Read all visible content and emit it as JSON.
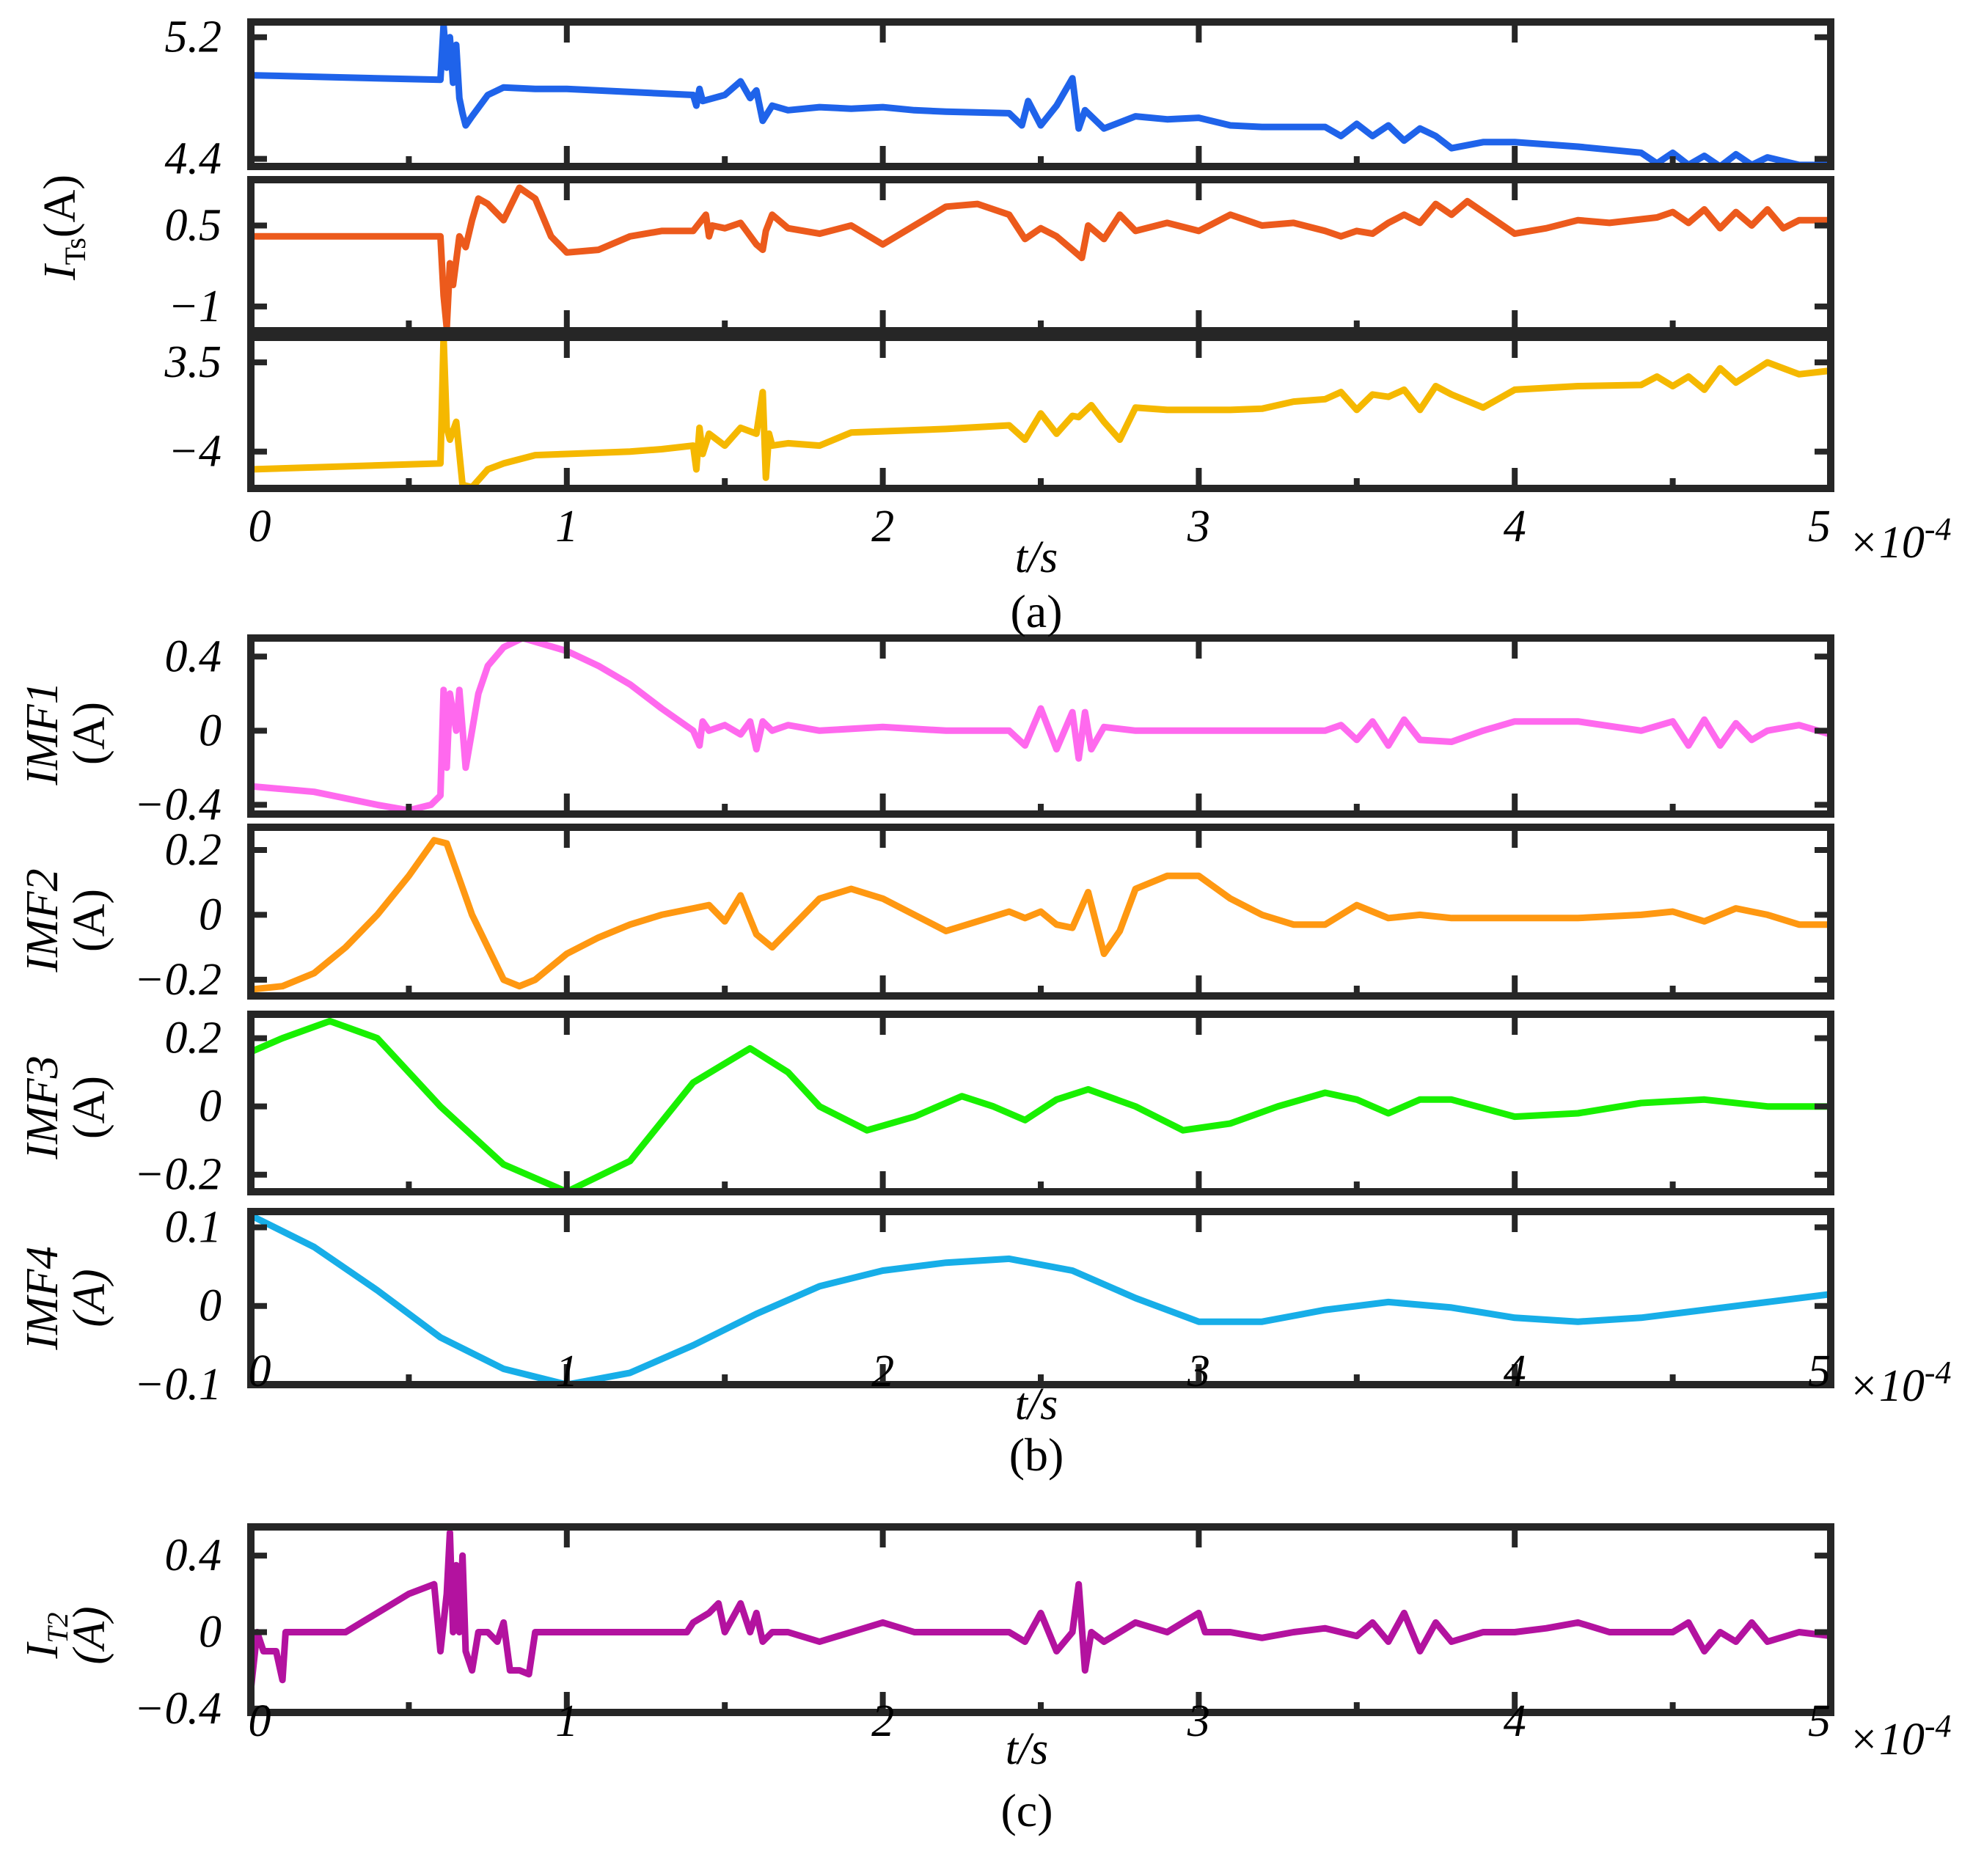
{
  "figure": {
    "captions": [
      "(a)",
      "(b)",
      "(c)"
    ],
    "x_exponent_label": "×10",
    "x_exponent_power": "-4"
  },
  "chart_data": [
    {
      "id": "a1",
      "panel": "(a)",
      "type": "line",
      "color": "#1f63ea",
      "xlabel": "t/s",
      "ylabel": "I_Ts(A)",
      "xlim": [
        0,
        5
      ],
      "ylim": [
        4.35,
        5.3
      ],
      "xticks": [
        0,
        1,
        2,
        3,
        4,
        5
      ],
      "yticks": [
        4.4,
        5.2
      ],
      "ytick_labels": [
        "4.4",
        "5.2"
      ],
      "x": [
        0,
        0.6,
        0.61,
        0.62,
        0.63,
        0.64,
        0.65,
        0.66,
        0.67,
        0.68,
        0.7,
        0.75,
        0.8,
        0.9,
        1.0,
        1.2,
        1.4,
        1.41,
        1.42,
        1.43,
        1.5,
        1.55,
        1.58,
        1.6,
        1.62,
        1.65,
        1.7,
        1.8,
        1.9,
        2.0,
        2.1,
        2.2,
        2.4,
        2.44,
        2.46,
        2.5,
        2.55,
        2.6,
        2.62,
        2.64,
        2.7,
        2.8,
        2.9,
        3.0,
        3.1,
        3.2,
        3.4,
        3.45,
        3.5,
        3.55,
        3.6,
        3.65,
        3.7,
        3.75,
        3.8,
        3.9,
        4.0,
        4.2,
        4.4,
        4.45,
        4.5,
        4.55,
        4.6,
        4.65,
        4.7,
        4.75,
        4.8,
        4.9,
        5.0
      ],
      "y": [
        4.95,
        4.92,
        5.28,
        5.0,
        5.2,
        4.9,
        5.15,
        4.8,
        4.7,
        4.62,
        4.68,
        4.82,
        4.87,
        4.86,
        4.86,
        4.84,
        4.82,
        4.75,
        4.86,
        4.78,
        4.82,
        4.91,
        4.8,
        4.85,
        4.65,
        4.75,
        4.72,
        4.74,
        4.73,
        4.74,
        4.72,
        4.71,
        4.7,
        4.62,
        4.78,
        4.62,
        4.75,
        4.93,
        4.6,
        4.72,
        4.6,
        4.68,
        4.66,
        4.67,
        4.62,
        4.61,
        4.61,
        4.55,
        4.63,
        4.55,
        4.62,
        4.52,
        4.6,
        4.55,
        4.47,
        4.51,
        4.51,
        4.48,
        4.44,
        4.37,
        4.44,
        4.36,
        4.42,
        4.35,
        4.43,
        4.36,
        4.41,
        4.36,
        4.36
      ]
    },
    {
      "id": "a2",
      "panel": "(a)",
      "type": "line",
      "color": "#ec5a1c",
      "xlim": [
        0,
        5
      ],
      "ylim": [
        -1.45,
        1.35
      ],
      "yticks": [
        -1,
        0.5
      ],
      "ytick_labels": [
        "−1",
        "0.5"
      ],
      "x": [
        0,
        0.6,
        0.61,
        0.62,
        0.63,
        0.64,
        0.66,
        0.68,
        0.7,
        0.72,
        0.75,
        0.8,
        0.85,
        0.9,
        0.95,
        1.0,
        1.1,
        1.2,
        1.3,
        1.4,
        1.44,
        1.45,
        1.46,
        1.5,
        1.55,
        1.6,
        1.62,
        1.63,
        1.65,
        1.7,
        1.8,
        1.9,
        2.0,
        2.1,
        2.2,
        2.3,
        2.4,
        2.45,
        2.5,
        2.55,
        2.6,
        2.63,
        2.65,
        2.7,
        2.75,
        2.8,
        2.9,
        3.0,
        3.1,
        3.2,
        3.3,
        3.4,
        3.45,
        3.5,
        3.55,
        3.6,
        3.65,
        3.7,
        3.75,
        3.8,
        3.85,
        3.9,
        4.0,
        4.1,
        4.2,
        4.3,
        4.45,
        4.5,
        4.55,
        4.6,
        4.65,
        4.7,
        4.75,
        4.8,
        4.85,
        4.9,
        5.0
      ],
      "y": [
        0.3,
        0.3,
        -0.8,
        -1.4,
        -0.2,
        -0.6,
        0.3,
        0.1,
        0.6,
        1.0,
        0.9,
        0.6,
        1.2,
        1.0,
        0.3,
        0.0,
        0.05,
        0.3,
        0.4,
        0.4,
        0.7,
        0.3,
        0.5,
        0.45,
        0.55,
        0.15,
        0.05,
        0.4,
        0.7,
        0.45,
        0.35,
        0.5,
        0.15,
        0.5,
        0.85,
        0.9,
        0.7,
        0.25,
        0.45,
        0.3,
        0.05,
        -0.1,
        0.5,
        0.25,
        0.7,
        0.4,
        0.55,
        0.4,
        0.7,
        0.5,
        0.55,
        0.4,
        0.3,
        0.4,
        0.35,
        0.55,
        0.7,
        0.55,
        0.9,
        0.7,
        0.95,
        0.75,
        0.35,
        0.45,
        0.6,
        0.55,
        0.65,
        0.75,
        0.55,
        0.8,
        0.45,
        0.75,
        0.5,
        0.8,
        0.45,
        0.6,
        0.6
      ]
    },
    {
      "id": "a3",
      "panel": "(a)",
      "type": "line",
      "color": "#f5b800",
      "xlim": [
        0,
        5
      ],
      "ylim": [
        -7.1,
        5.6
      ],
      "yticks": [
        -4,
        3.5
      ],
      "ytick_labels": [
        "−4",
        "3.5"
      ],
      "x": [
        0,
        0.6,
        0.61,
        0.62,
        0.63,
        0.65,
        0.67,
        0.7,
        0.75,
        0.8,
        0.9,
        1.0,
        1.2,
        1.3,
        1.4,
        1.41,
        1.42,
        1.43,
        1.45,
        1.5,
        1.55,
        1.6,
        1.62,
        1.63,
        1.64,
        1.65,
        1.7,
        1.8,
        1.9,
        2.0,
        2.1,
        2.2,
        2.4,
        2.45,
        2.5,
        2.55,
        2.6,
        2.62,
        2.66,
        2.7,
        2.75,
        2.8,
        2.9,
        3.0,
        3.1,
        3.2,
        3.3,
        3.4,
        3.45,
        3.5,
        3.55,
        3.6,
        3.65,
        3.7,
        3.75,
        3.8,
        3.9,
        4.0,
        4.2,
        4.4,
        4.45,
        4.5,
        4.55,
        4.6,
        4.65,
        4.7,
        4.8,
        4.9,
        5.0
      ],
      "y": [
        -5.5,
        -5,
        5.6,
        -2,
        -3,
        -1.5,
        -6.8,
        -7.0,
        -5.5,
        -5,
        -4.3,
        -4.2,
        -4,
        -3.8,
        -3.5,
        -5.5,
        -2,
        -4.2,
        -2.5,
        -3.5,
        -2,
        -2.5,
        1.0,
        -6.2,
        -2.5,
        -3.5,
        -3.3,
        -3.5,
        -2.4,
        -2.3,
        -2.2,
        -2.1,
        -1.8,
        -3,
        -0.8,
        -2.5,
        -1.0,
        -1.1,
        -0.1,
        -1.5,
        -3,
        -0.3,
        -0.5,
        -0.5,
        -0.5,
        -0.4,
        0.2,
        0.4,
        1.0,
        -0.5,
        0.8,
        0.6,
        1.2,
        -0.5,
        1.5,
        0.8,
        -0.3,
        1.2,
        1.5,
        1.6,
        2.3,
        1.5,
        2.3,
        1.2,
        3.0,
        1.8,
        3.5,
        2.5,
        2.8
      ]
    },
    {
      "id": "b1",
      "panel": "(b)",
      "type": "line",
      "color": "#ff69ee",
      "xlabel": "t/s",
      "ylabel": "IMF1 (A)",
      "xlim": [
        0,
        5
      ],
      "ylim": [
        -0.45,
        0.5
      ],
      "yticks": [
        -0.4,
        0,
        0.4
      ],
      "ytick_labels": [
        "−0.4",
        "0",
        "0.4"
      ],
      "x": [
        0,
        0.2,
        0.4,
        0.5,
        0.57,
        0.6,
        0.61,
        0.62,
        0.63,
        0.65,
        0.66,
        0.68,
        0.7,
        0.72,
        0.75,
        0.8,
        0.86,
        0.9,
        1.0,
        1.1,
        1.2,
        1.3,
        1.4,
        1.42,
        1.43,
        1.45,
        1.5,
        1.55,
        1.58,
        1.6,
        1.62,
        1.65,
        1.7,
        1.8,
        2.0,
        2.2,
        2.4,
        2.45,
        2.5,
        2.55,
        2.6,
        2.62,
        2.64,
        2.66,
        2.7,
        2.8,
        3.0,
        3.2,
        3.4,
        3.45,
        3.5,
        3.55,
        3.6,
        3.65,
        3.7,
        3.8,
        3.9,
        4.0,
        4.2,
        4.4,
        4.5,
        4.55,
        4.6,
        4.65,
        4.7,
        4.75,
        4.8,
        4.9,
        5.0
      ],
      "y": [
        -0.3,
        -0.33,
        -0.4,
        -0.43,
        -0.4,
        -0.35,
        0.22,
        -0.2,
        0.2,
        0.0,
        0.22,
        -0.2,
        0.0,
        0.2,
        0.35,
        0.45,
        0.5,
        0.48,
        0.43,
        0.35,
        0.25,
        0.12,
        0.0,
        -0.08,
        0.05,
        0.0,
        0.03,
        -0.02,
        0.05,
        -0.1,
        0.05,
        0.0,
        0.03,
        0.0,
        0.02,
        0.0,
        0.0,
        -0.08,
        0.12,
        -0.1,
        0.1,
        -0.15,
        0.1,
        -0.1,
        0.02,
        0.0,
        0.0,
        0.0,
        0.0,
        0.03,
        -0.05,
        0.05,
        -0.08,
        0.06,
        -0.05,
        -0.06,
        0.0,
        0.05,
        0.05,
        0.0,
        0.05,
        -0.08,
        0.06,
        -0.08,
        0.04,
        -0.05,
        0.0,
        0.03,
        -0.02
      ]
    },
    {
      "id": "b2",
      "panel": "(b)",
      "type": "line",
      "color": "#ff9811",
      "ylabel": "IMF2 (A)",
      "xlim": [
        0,
        5
      ],
      "ylim": [
        -0.25,
        0.27
      ],
      "yticks": [
        -0.2,
        0,
        0.2
      ],
      "ytick_labels": [
        "−0.2",
        "0",
        "0.2"
      ],
      "x": [
        0,
        0.1,
        0.2,
        0.3,
        0.4,
        0.5,
        0.58,
        0.62,
        0.7,
        0.8,
        0.85,
        0.9,
        1.0,
        1.1,
        1.2,
        1.3,
        1.4,
        1.45,
        1.5,
        1.55,
        1.6,
        1.65,
        1.7,
        1.8,
        1.9,
        2.0,
        2.1,
        2.2,
        2.3,
        2.4,
        2.45,
        2.5,
        2.55,
        2.6,
        2.65,
        2.7,
        2.75,
        2.8,
        2.9,
        3.0,
        3.1,
        3.2,
        3.3,
        3.4,
        3.5,
        3.6,
        3.7,
        3.8,
        4.0,
        4.2,
        4.4,
        4.5,
        4.6,
        4.7,
        4.8,
        4.9,
        5.0
      ],
      "y": [
        -0.23,
        -0.22,
        -0.18,
        -0.1,
        0.0,
        0.12,
        0.23,
        0.22,
        0.0,
        -0.2,
        -0.22,
        -0.2,
        -0.12,
        -0.07,
        -0.03,
        0.0,
        0.02,
        0.03,
        -0.02,
        0.06,
        -0.06,
        -0.1,
        -0.05,
        0.05,
        0.08,
        0.05,
        0.0,
        -0.05,
        -0.02,
        0.01,
        -0.01,
        0.01,
        -0.03,
        -0.04,
        0.07,
        -0.12,
        -0.05,
        0.08,
        0.12,
        0.12,
        0.05,
        0.0,
        -0.03,
        -0.03,
        0.03,
        -0.01,
        0.0,
        -0.01,
        -0.01,
        -0.01,
        0.0,
        0.01,
        -0.02,
        0.02,
        0.0,
        -0.03,
        -0.03
      ]
    },
    {
      "id": "b3",
      "panel": "(b)",
      "type": "line",
      "color": "#18f000",
      "ylabel": "IMF3 (A)",
      "xlim": [
        0,
        5
      ],
      "ylim": [
        -0.25,
        0.27
      ],
      "yticks": [
        -0.2,
        0,
        0.2
      ],
      "ytick_labels": [
        "−0.2",
        "0",
        "0.2"
      ],
      "x": [
        0,
        0.1,
        0.25,
        0.4,
        0.6,
        0.8,
        1.0,
        1.2,
        1.4,
        1.58,
        1.7,
        1.8,
        1.95,
        2.1,
        2.25,
        2.35,
        2.45,
        2.55,
        2.65,
        2.8,
        2.95,
        3.1,
        3.25,
        3.4,
        3.5,
        3.6,
        3.7,
        3.8,
        4.0,
        4.2,
        4.4,
        4.6,
        4.8,
        5.0
      ],
      "y": [
        0.16,
        0.2,
        0.25,
        0.2,
        0.0,
        -0.17,
        -0.25,
        -0.16,
        0.07,
        0.17,
        0.1,
        0.0,
        -0.07,
        -0.03,
        0.03,
        0.0,
        -0.04,
        0.02,
        0.05,
        0.0,
        -0.07,
        -0.05,
        0.0,
        0.04,
        0.02,
        -0.02,
        0.02,
        0.02,
        -0.03,
        -0.02,
        0.01,
        0.02,
        0.0,
        0.0
      ]
    },
    {
      "id": "b4",
      "panel": "(b)",
      "type": "line",
      "color": "#17aee8",
      "ylabel": "IMF4 (A)",
      "xlim": [
        0,
        5
      ],
      "ylim": [
        -0.1,
        0.12
      ],
      "yticks": [
        -0.1,
        0,
        0.1
      ],
      "ytick_labels": [
        "−0.1",
        "0",
        "0.1"
      ],
      "x": [
        0,
        0.2,
        0.4,
        0.6,
        0.8,
        1.0,
        1.2,
        1.4,
        1.6,
        1.8,
        2.0,
        2.2,
        2.4,
        2.6,
        2.8,
        3.0,
        3.2,
        3.4,
        3.6,
        3.8,
        4.0,
        4.2,
        4.4,
        4.6,
        4.8,
        5.0
      ],
      "y": [
        0.115,
        0.075,
        0.02,
        -0.04,
        -0.08,
        -0.1,
        -0.085,
        -0.05,
        -0.01,
        0.025,
        0.045,
        0.055,
        0.06,
        0.045,
        0.01,
        -0.02,
        -0.02,
        -0.005,
        0.005,
        -0.002,
        -0.015,
        -0.02,
        -0.015,
        -0.005,
        0.005,
        0.015
      ]
    },
    {
      "id": "c1",
      "panel": "(c)",
      "type": "line",
      "color": "#b3129f",
      "xlabel": "t/s",
      "ylabel": "I_T2 (A)",
      "xlim": [
        0,
        5
      ],
      "ylim": [
        -0.42,
        0.55
      ],
      "yticks": [
        -0.4,
        0,
        0.4
      ],
      "ytick_labels": [
        "−0.4",
        "0",
        "0.4"
      ],
      "x": [
        0,
        0.02,
        0.04,
        0.06,
        0.08,
        0.1,
        0.11,
        0.12,
        0.14,
        0.3,
        0.35,
        0.5,
        0.58,
        0.6,
        0.62,
        0.63,
        0.64,
        0.65,
        0.66,
        0.67,
        0.68,
        0.7,
        0.72,
        0.75,
        0.78,
        0.8,
        0.82,
        0.85,
        0.88,
        0.9,
        1.0,
        1.2,
        1.38,
        1.4,
        1.45,
        1.48,
        1.5,
        1.55,
        1.58,
        1.6,
        1.62,
        1.65,
        1.7,
        1.8,
        1.9,
        2.0,
        2.1,
        2.2,
        2.3,
        2.4,
        2.45,
        2.5,
        2.55,
        2.6,
        2.62,
        2.64,
        2.66,
        2.7,
        2.75,
        2.8,
        2.9,
        2.95,
        3.0,
        3.02,
        3.1,
        3.2,
        3.3,
        3.4,
        3.5,
        3.55,
        3.6,
        3.65,
        3.7,
        3.75,
        3.8,
        3.9,
        4.0,
        4.1,
        4.2,
        4.3,
        4.4,
        4.5,
        4.55,
        4.6,
        4.65,
        4.7,
        4.75,
        4.8,
        4.9,
        5.0
      ],
      "y": [
        -0.3,
        0.0,
        -0.1,
        -0.1,
        -0.1,
        -0.25,
        0.0,
        0.0,
        0.0,
        0.0,
        0.05,
        0.2,
        0.25,
        -0.1,
        0.2,
        0.52,
        0.0,
        0.35,
        0.0,
        0.4,
        -0.1,
        -0.2,
        0.0,
        0.0,
        -0.05,
        0.05,
        -0.2,
        -0.2,
        -0.22,
        0.0,
        0.0,
        0.0,
        0.0,
        0.05,
        0.1,
        0.15,
        0.0,
        0.15,
        0.0,
        0.1,
        -0.05,
        0.0,
        0.0,
        -0.05,
        0.0,
        0.05,
        0.0,
        0.0,
        0.0,
        0.0,
        -0.05,
        0.1,
        -0.1,
        0.0,
        0.25,
        -0.2,
        0.0,
        -0.05,
        0.0,
        0.05,
        0.0,
        0.05,
        0.1,
        0.0,
        0.0,
        -0.03,
        0.0,
        0.02,
        -0.02,
        0.05,
        -0.05,
        0.1,
        -0.1,
        0.05,
        -0.05,
        0.0,
        0.0,
        0.02,
        0.05,
        0.0,
        0.0,
        0.0,
        0.05,
        -0.1,
        0.0,
        -0.05,
        0.05,
        -0.05,
        0.0,
        -0.02
      ]
    }
  ]
}
